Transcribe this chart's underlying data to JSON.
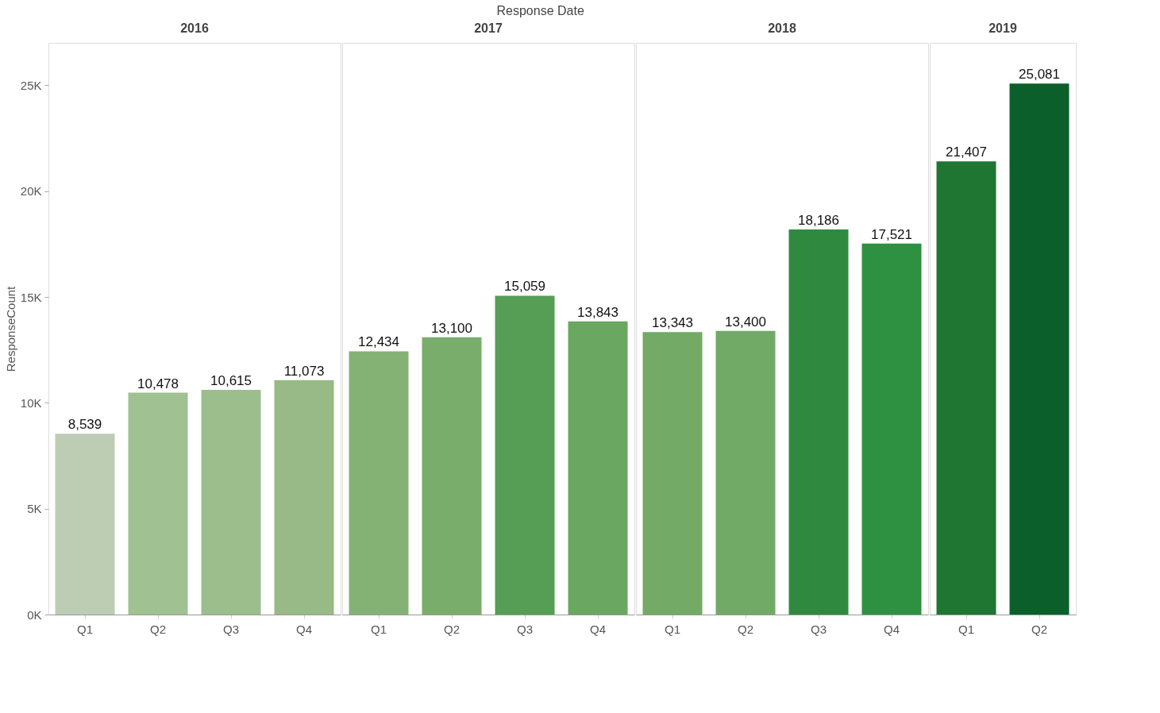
{
  "chart_data": [
    {
      "type": "bar",
      "title": "2016",
      "ylabel": "ResponseCount",
      "annotations": [
        "Response Date"
      ],
      "categories": [
        "Q1",
        "Q2",
        "Q3",
        "Q4"
      ],
      "values": [
        8539,
        10478,
        10615,
        11073
      ],
      "value_labels": [
        "8,539",
        "10,478",
        "10,615",
        "11,073"
      ],
      "colors": [
        "#bccdb4",
        "#a0c192",
        "#9cbe8d",
        "#97ba86"
      ],
      "ylim": [
        0,
        27000
      ],
      "yticks": [
        {
          "value": 0,
          "label": "0K"
        },
        {
          "value": 5000,
          "label": "5K"
        },
        {
          "value": 10000,
          "label": "10K"
        },
        {
          "value": 15000,
          "label": "15K"
        },
        {
          "value": 20000,
          "label": "20K"
        },
        {
          "value": 25000,
          "label": "25K"
        }
      ],
      "grid": false
    },
    {
      "type": "bar",
      "title": "2017",
      "categories": [
        "Q1",
        "Q2",
        "Q3",
        "Q4"
      ],
      "values": [
        12434,
        13100,
        15059,
        13843
      ],
      "value_labels": [
        "12,434",
        "13,100",
        "15,059",
        "13,843"
      ],
      "colors": [
        "#84b274",
        "#79ad6b",
        "#569e55",
        "#6aa761"
      ],
      "ylim": [
        0,
        27000
      ],
      "tick_labels": "x",
      "grid": false
    },
    {
      "type": "bar",
      "title": "2018",
      "categories": [
        "Q1",
        "Q2",
        "Q3",
        "Q4"
      ],
      "values": [
        13343,
        13400,
        18186,
        17521
      ],
      "value_labels": [
        "13,343",
        "13,400",
        "18,186",
        "17,521"
      ],
      "colors": [
        "#72aa66",
        "#71aa66",
        "#2f8a40",
        "#2e9142"
      ],
      "ylim": [
        0,
        27000
      ],
      "tick_labels": "x",
      "grid": false
    },
    {
      "type": "bar",
      "title": "2019",
      "categories": [
        "Q1",
        "Q2"
      ],
      "values": [
        21407,
        25081
      ],
      "value_labels": [
        "21,407",
        "25,081"
      ],
      "colors": [
        "#1e7632",
        "#0b5f2b"
      ],
      "ylim": [
        0,
        27000
      ],
      "tick_labels": "x",
      "grid": false
    }
  ]
}
